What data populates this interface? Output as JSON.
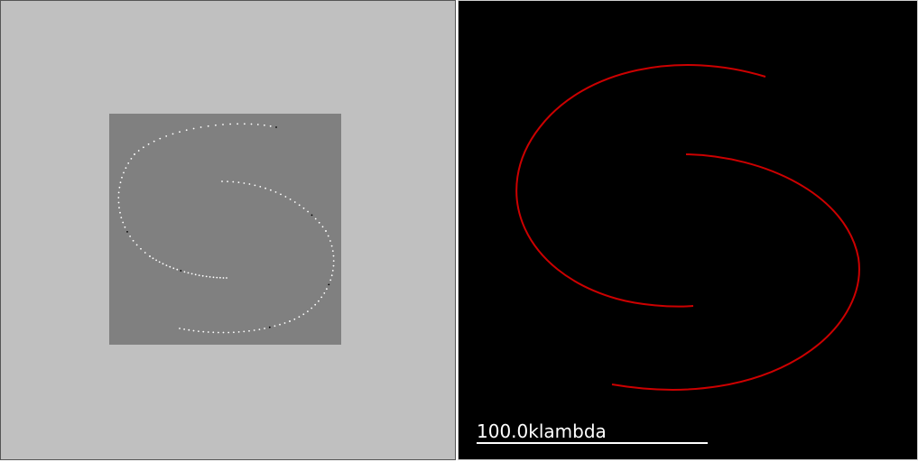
{
  "left_view": {
    "background_color": "#c0c0c0",
    "image_background_color": "#808080",
    "dot_colors": [
      "#ffffff",
      "#000000"
    ]
  },
  "right_view": {
    "background_color": "#000000",
    "curve_color": "#cc0000",
    "scale_bar": {
      "label": "100.0klambda",
      "color": "#ffffff"
    }
  }
}
